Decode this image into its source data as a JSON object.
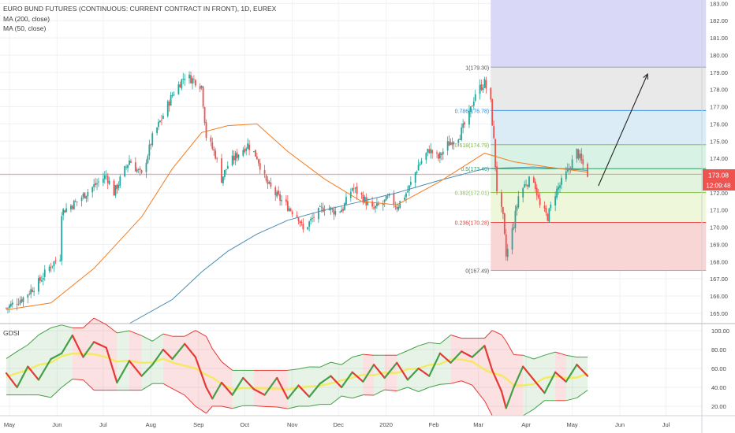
{
  "header": {
    "title": "EURO BUND FUTURES (CONTINUOUS: CURRENT CONTRACT IN FRONT), 1D, EUREX",
    "ma200_label": "MA (200, close)",
    "ma50_label": "MA (50, close)"
  },
  "indicator": {
    "label": "GDSI"
  },
  "price": {
    "last_badge": "173.08",
    "countdown_badge": "12:09:48"
  },
  "colors": {
    "candle_up": "#26a69a",
    "candle_down": "#ef5350",
    "ma50": "#f57c1f",
    "ma200": "#4a8cb0",
    "last_price_line": "#ef5350",
    "gdsi_red": "#e53935",
    "gdsi_green": "#43a047",
    "gdsi_mid": "#f5e94a"
  },
  "chart_data": [
    {
      "type": "candlestick",
      "title": "EURO BUND FUTURES (CONTINUOUS: CURRENT CONTRACT IN FRONT), 1D, EUREX",
      "x_ticks": [
        "May",
        "Jun",
        "Jul",
        "Aug",
        "Sep",
        "Oct",
        "Nov",
        "Dec",
        "2020",
        "Feb",
        "Mar",
        "Apr",
        "May",
        "Jun",
        "Jul"
      ],
      "y_ticks": [
        "183.00",
        "182.00",
        "181.00",
        "180.00",
        "179.00",
        "178.00",
        "177.00",
        "176.00",
        "175.00",
        "174.00",
        "173.00",
        "172.00",
        "171.00",
        "170.00",
        "169.00",
        "168.00",
        "167.00",
        "166.00",
        "165.00"
      ],
      "ylim": [
        164.4,
        183.2
      ],
      "close_series": [
        {
          "x": "2019-04-29",
          "y": 165.3
        },
        {
          "x": "2019-05-10",
          "y": 165.9
        },
        {
          "x": "2019-05-20",
          "y": 166.8
        },
        {
          "x": "2019-05-28",
          "y": 167.8
        },
        {
          "x": "2019-06-03",
          "y": 168.3
        },
        {
          "x": "2019-06-04",
          "y": 170.9
        },
        {
          "x": "2019-06-14",
          "y": 171.5
        },
        {
          "x": "2019-06-25",
          "y": 172.4
        },
        {
          "x": "2019-07-03",
          "y": 173.0
        },
        {
          "x": "2019-07-08",
          "y": 172.0
        },
        {
          "x": "2019-07-18",
          "y": 173.9
        },
        {
          "x": "2019-07-26",
          "y": 173.0
        },
        {
          "x": "2019-08-02",
          "y": 175.2
        },
        {
          "x": "2019-08-09",
          "y": 176.5
        },
        {
          "x": "2019-08-15",
          "y": 177.7
        },
        {
          "x": "2019-08-23",
          "y": 178.8
        },
        {
          "x": "2019-08-30",
          "y": 178.5
        },
        {
          "x": "2019-09-03",
          "y": 178.2
        },
        {
          "x": "2019-09-06",
          "y": 175.3
        },
        {
          "x": "2019-09-12",
          "y": 174.2
        },
        {
          "x": "2019-09-16",
          "y": 172.8
        },
        {
          "x": "2019-09-20",
          "y": 173.6
        },
        {
          "x": "2019-09-27",
          "y": 174.3
        },
        {
          "x": "2019-10-03",
          "y": 174.8
        },
        {
          "x": "2019-10-09",
          "y": 174.1
        },
        {
          "x": "2019-10-15",
          "y": 172.6
        },
        {
          "x": "2019-10-22",
          "y": 171.8
        },
        {
          "x": "2019-10-29",
          "y": 171.2
        },
        {
          "x": "2019-11-05",
          "y": 170.6
        },
        {
          "x": "2019-11-08",
          "y": 169.8
        },
        {
          "x": "2019-11-15",
          "y": 170.6
        },
        {
          "x": "2019-11-22",
          "y": 171.2
        },
        {
          "x": "2019-11-29",
          "y": 170.9
        },
        {
          "x": "2019-12-04",
          "y": 171.1
        },
        {
          "x": "2019-12-10",
          "y": 172.3
        },
        {
          "x": "2019-12-16",
          "y": 171.8
        },
        {
          "x": "2019-12-23",
          "y": 171.0
        },
        {
          "x": "2019-12-30",
          "y": 171.4
        },
        {
          "x": "2020-01-03",
          "y": 171.7
        },
        {
          "x": "2020-01-08",
          "y": 171.2
        },
        {
          "x": "2020-01-15",
          "y": 172.1
        },
        {
          "x": "2020-01-22",
          "y": 173.6
        },
        {
          "x": "2020-01-29",
          "y": 174.5
        },
        {
          "x": "2020-02-04",
          "y": 174.0
        },
        {
          "x": "2020-02-10",
          "y": 174.8
        },
        {
          "x": "2020-02-18",
          "y": 175.4
        },
        {
          "x": "2020-02-24",
          "y": 176.5
        },
        {
          "x": "2020-02-28",
          "y": 177.8
        },
        {
          "x": "2020-03-05",
          "y": 178.4
        },
        {
          "x": "2020-03-09",
          "y": 177.2
        },
        {
          "x": "2020-03-11",
          "y": 175.0
        },
        {
          "x": "2020-03-13",
          "y": 172.2
        },
        {
          "x": "2020-03-17",
          "y": 170.5
        },
        {
          "x": "2020-03-19",
          "y": 168.3
        },
        {
          "x": "2020-03-24",
          "y": 170.2
        },
        {
          "x": "2020-03-27",
          "y": 171.8
        },
        {
          "x": "2020-04-01",
          "y": 172.6
        },
        {
          "x": "2020-04-06",
          "y": 172.8
        },
        {
          "x": "2020-04-10",
          "y": 171.2
        },
        {
          "x": "2020-04-15",
          "y": 170.6
        },
        {
          "x": "2020-04-20",
          "y": 172.0
        },
        {
          "x": "2020-04-24",
          "y": 172.6
        },
        {
          "x": "2020-04-29",
          "y": 173.4
        },
        {
          "x": "2020-05-04",
          "y": 174.4
        },
        {
          "x": "2020-05-07",
          "y": 173.8
        },
        {
          "x": "2020-05-11",
          "y": 173.1
        }
      ],
      "ma200": [
        {
          "x": "2019-07-18",
          "y": 164.4
        },
        {
          "x": "2019-08-15",
          "y": 165.8
        },
        {
          "x": "2019-09-03",
          "y": 167.4
        },
        {
          "x": "2019-09-20",
          "y": 168.6
        },
        {
          "x": "2019-10-09",
          "y": 169.6
        },
        {
          "x": "2019-10-29",
          "y": 170.4
        },
        {
          "x": "2019-11-22",
          "y": 171.0
        },
        {
          "x": "2019-12-16",
          "y": 171.5
        },
        {
          "x": "2020-01-08",
          "y": 172.0
        },
        {
          "x": "2020-02-04",
          "y": 172.7
        },
        {
          "x": "2020-03-05",
          "y": 173.4
        },
        {
          "x": "2020-04-06",
          "y": 173.5
        },
        {
          "x": "2020-05-11",
          "y": 173.3
        }
      ],
      "ma50": [
        {
          "x": "2019-04-29",
          "y": 165.2
        },
        {
          "x": "2019-05-28",
          "y": 165.6
        },
        {
          "x": "2019-06-25",
          "y": 167.6
        },
        {
          "x": "2019-07-26",
          "y": 170.6
        },
        {
          "x": "2019-08-15",
          "y": 173.4
        },
        {
          "x": "2019-09-03",
          "y": 175.5
        },
        {
          "x": "2019-09-20",
          "y": 175.9
        },
        {
          "x": "2019-10-09",
          "y": 176.0
        },
        {
          "x": "2019-10-29",
          "y": 174.4
        },
        {
          "x": "2019-11-22",
          "y": 172.8
        },
        {
          "x": "2019-12-16",
          "y": 171.5
        },
        {
          "x": "2020-01-08",
          "y": 171.3
        },
        {
          "x": "2020-02-04",
          "y": 172.6
        },
        {
          "x": "2020-03-05",
          "y": 174.3
        },
        {
          "x": "2020-03-24",
          "y": 173.8
        },
        {
          "x": "2020-04-15",
          "y": 173.5
        },
        {
          "x": "2020-05-11",
          "y": 173.2
        }
      ],
      "last_price": 173.08,
      "fibonacci": {
        "x_start": "2020-03-09",
        "x_end": "2020-07-27",
        "levels": [
          {
            "ratio": "0",
            "price": 167.49,
            "label": "0(167.49)",
            "fill": "#f7d4d4"
          },
          {
            "ratio": "0.236",
            "price": 170.28,
            "label": "0.236(170.28)",
            "fill": "#eef7d9"
          },
          {
            "ratio": "0.382",
            "price": 172.01,
            "label": "0.382(172.01)",
            "fill": "#e2f4dd"
          },
          {
            "ratio": "0.5",
            "price": 173.4,
            "label": "0.5(173.40)",
            "fill": "#d9f2e6"
          },
          {
            "ratio": "0.618",
            "price": 174.79,
            "label": "0.618(174.79)",
            "fill": "#dcecf6"
          },
          {
            "ratio": "0.786",
            "price": 176.78,
            "label": "0.786(176.78)",
            "fill": "#e8e8e8"
          },
          {
            "ratio": "1",
            "price": 179.3,
            "label": "1(179.30)",
            "fill": "#d9d9f7"
          }
        ],
        "label_colors": {
          "0": "#555555",
          "0.236": "#e53935",
          "0.382": "#8bc34a",
          "0.5": "#2e9e6a",
          "0.618": "#7cb342",
          "0.786": "#1e88e5",
          "1": "#555555"
        }
      },
      "projection_arrow": {
        "from": {
          "x": "2020-05-18",
          "y": 172.4
        },
        "to": {
          "x": "2020-06-19",
          "y": 178.9
        }
      }
    },
    {
      "type": "line",
      "title": "GDSI",
      "y_ticks": [
        "100.00",
        "80.00",
        "60.00",
        "40.00",
        "20.00"
      ],
      "ylim": [
        10,
        105
      ],
      "gdsi": [
        {
          "x": "2019-04-29",
          "y": 55
        },
        {
          "x": "2019-05-06",
          "y": 40
        },
        {
          "x": "2019-05-13",
          "y": 62
        },
        {
          "x": "2019-05-20",
          "y": 48
        },
        {
          "x": "2019-05-28",
          "y": 70
        },
        {
          "x": "2019-06-04",
          "y": 76
        },
        {
          "x": "2019-06-11",
          "y": 95
        },
        {
          "x": "2019-06-18",
          "y": 72
        },
        {
          "x": "2019-06-25",
          "y": 88
        },
        {
          "x": "2019-07-03",
          "y": 82
        },
        {
          "x": "2019-07-10",
          "y": 45
        },
        {
          "x": "2019-07-18",
          "y": 68
        },
        {
          "x": "2019-07-26",
          "y": 52
        },
        {
          "x": "2019-08-02",
          "y": 64
        },
        {
          "x": "2019-08-09",
          "y": 80
        },
        {
          "x": "2019-08-15",
          "y": 70
        },
        {
          "x": "2019-08-23",
          "y": 86
        },
        {
          "x": "2019-08-30",
          "y": 72
        },
        {
          "x": "2019-09-06",
          "y": 40
        },
        {
          "x": "2019-09-10",
          "y": 28
        },
        {
          "x": "2019-09-16",
          "y": 45
        },
        {
          "x": "2019-09-23",
          "y": 32
        },
        {
          "x": "2019-09-30",
          "y": 50
        },
        {
          "x": "2019-10-07",
          "y": 38
        },
        {
          "x": "2019-10-14",
          "y": 32
        },
        {
          "x": "2019-10-22",
          "y": 50
        },
        {
          "x": "2019-10-29",
          "y": 28
        },
        {
          "x": "2019-11-05",
          "y": 42
        },
        {
          "x": "2019-11-12",
          "y": 30
        },
        {
          "x": "2019-11-19",
          "y": 44
        },
        {
          "x": "2019-11-26",
          "y": 52
        },
        {
          "x": "2019-12-03",
          "y": 40
        },
        {
          "x": "2019-12-10",
          "y": 56
        },
        {
          "x": "2019-12-17",
          "y": 46
        },
        {
          "x": "2019-12-24",
          "y": 64
        },
        {
          "x": "2019-12-31",
          "y": 50
        },
        {
          "x": "2020-01-08",
          "y": 66
        },
        {
          "x": "2020-01-15",
          "y": 48
        },
        {
          "x": "2020-01-22",
          "y": 60
        },
        {
          "x": "2020-01-29",
          "y": 52
        },
        {
          "x": "2020-02-05",
          "y": 76
        },
        {
          "x": "2020-02-12",
          "y": 66
        },
        {
          "x": "2020-02-19",
          "y": 78
        },
        {
          "x": "2020-02-26",
          "y": 72
        },
        {
          "x": "2020-03-05",
          "y": 84
        },
        {
          "x": "2020-03-10",
          "y": 58
        },
        {
          "x": "2020-03-16",
          "y": 36
        },
        {
          "x": "2020-03-19",
          "y": 18
        },
        {
          "x": "2020-03-24",
          "y": 40
        },
        {
          "x": "2020-03-30",
          "y": 62
        },
        {
          "x": "2020-04-06",
          "y": 48
        },
        {
          "x": "2020-04-13",
          "y": 34
        },
        {
          "x": "2020-04-20",
          "y": 56
        },
        {
          "x": "2020-04-27",
          "y": 46
        },
        {
          "x": "2020-05-04",
          "y": 64
        },
        {
          "x": "2020-05-11",
          "y": 52
        }
      ]
    }
  ]
}
